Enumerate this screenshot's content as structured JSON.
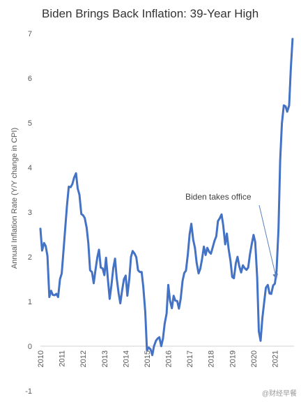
{
  "chart_data": {
    "type": "line",
    "title": "Biden Brings Back Inflation: 39-Year High",
    "xlabel": "",
    "ylabel": "Annual Inflation Rate (Y/Y change in CPI)",
    "ylim": [
      -1,
      7
    ],
    "xlim": [
      2010,
      2021.9
    ],
    "y_ticks": [
      -1,
      0,
      1,
      2,
      3,
      4,
      5,
      6,
      7
    ],
    "x_ticks": [
      2010,
      2011,
      2012,
      2013,
      2014,
      2015,
      2016,
      2017,
      2018,
      2019,
      2020,
      2021
    ],
    "grid": false,
    "line_color": "#4472C4",
    "series": [
      {
        "x": [
          2010.0,
          2010.08,
          2010.17,
          2010.25,
          2010.33,
          2010.42,
          2010.5,
          2010.58,
          2010.67,
          2010.75,
          2010.83,
          2010.92,
          2011.0,
          2011.08,
          2011.17,
          2011.25,
          2011.33,
          2011.42,
          2011.5,
          2011.58,
          2011.67,
          2011.75,
          2011.83,
          2011.92,
          2012.0,
          2012.08,
          2012.17,
          2012.25,
          2012.33,
          2012.42,
          2012.5,
          2012.58,
          2012.67,
          2012.75,
          2012.83,
          2012.92,
          2013.0,
          2013.08,
          2013.17,
          2013.25,
          2013.33,
          2013.42,
          2013.5,
          2013.58,
          2013.67,
          2013.75,
          2013.83,
          2013.92,
          2014.0,
          2014.08,
          2014.17,
          2014.25,
          2014.33,
          2014.42,
          2014.5,
          2014.58,
          2014.67,
          2014.75,
          2014.83,
          2014.92,
          2015.0,
          2015.08,
          2015.17,
          2015.25,
          2015.33,
          2015.42,
          2015.5,
          2015.58,
          2015.67,
          2015.75,
          2015.83,
          2015.92,
          2016.0,
          2016.08,
          2016.17,
          2016.25,
          2016.33,
          2016.42,
          2016.5,
          2016.58,
          2016.67,
          2016.75,
          2016.83,
          2016.92,
          2017.0,
          2017.08,
          2017.17,
          2017.25,
          2017.33,
          2017.42,
          2017.5,
          2017.58,
          2017.67,
          2017.75,
          2017.83,
          2017.92,
          2018.0,
          2018.08,
          2018.17,
          2018.25,
          2018.33,
          2018.42,
          2018.5,
          2018.58,
          2018.67,
          2018.75,
          2018.83,
          2018.92,
          2019.0,
          2019.08,
          2019.17,
          2019.25,
          2019.33,
          2019.42,
          2019.5,
          2019.58,
          2019.67,
          2019.75,
          2019.83,
          2019.92,
          2020.0,
          2020.08,
          2020.17,
          2020.25,
          2020.33,
          2020.42,
          2020.5,
          2020.58,
          2020.67,
          2020.75,
          2020.83,
          2020.92,
          2021.0,
          2021.08,
          2021.17,
          2021.25,
          2021.33,
          2021.42,
          2021.5,
          2021.58,
          2021.67,
          2021.75,
          2021.83
        ],
        "y": [
          2.63,
          2.14,
          2.31,
          2.24,
          2.02,
          1.1,
          1.24,
          1.15,
          1.14,
          1.17,
          1.1,
          1.5,
          1.63,
          2.11,
          2.68,
          3.16,
          3.57,
          3.56,
          3.63,
          3.77,
          3.87,
          3.53,
          3.39,
          2.96,
          2.93,
          2.87,
          2.65,
          2.3,
          1.7,
          1.66,
          1.41,
          1.69,
          1.99,
          2.16,
          1.76,
          1.74,
          1.59,
          1.98,
          1.47,
          1.06,
          1.36,
          1.75,
          1.96,
          1.52,
          1.18,
          0.96,
          1.24,
          1.5,
          1.58,
          1.13,
          1.51,
          2.0,
          2.13,
          2.07,
          1.99,
          1.7,
          1.66,
          1.66,
          1.32,
          0.76,
          -0.09,
          -0.03,
          -0.07,
          -0.2,
          0.0,
          0.12,
          0.17,
          0.2,
          0.0,
          0.17,
          0.5,
          0.73,
          1.37,
          1.02,
          0.85,
          1.13,
          1.02,
          1.01,
          0.84,
          1.06,
          1.46,
          1.64,
          1.69,
          2.07,
          2.5,
          2.74,
          2.38,
          2.2,
          1.87,
          1.63,
          1.73,
          1.94,
          2.23,
          2.04,
          2.2,
          2.11,
          2.07,
          2.21,
          2.36,
          2.46,
          2.8,
          2.87,
          2.95,
          2.7,
          2.28,
          2.52,
          2.18,
          1.91,
          1.55,
          1.52,
          1.86,
          2.0,
          1.79,
          1.65,
          1.81,
          1.75,
          1.71,
          1.76,
          2.05,
          2.29,
          2.49,
          2.33,
          1.54,
          0.33,
          0.12,
          0.65,
          0.99,
          1.31,
          1.37,
          1.18,
          1.17,
          1.36,
          1.4,
          1.68,
          2.62,
          4.16,
          4.99,
          5.39,
          5.37,
          5.25,
          5.39,
          6.22,
          6.88
        ]
      }
    ],
    "annotations": [
      {
        "text": "Biden takes office",
        "x": 2021.0,
        "y": 1.4
      }
    ]
  },
  "watermark": "@财经早餐"
}
